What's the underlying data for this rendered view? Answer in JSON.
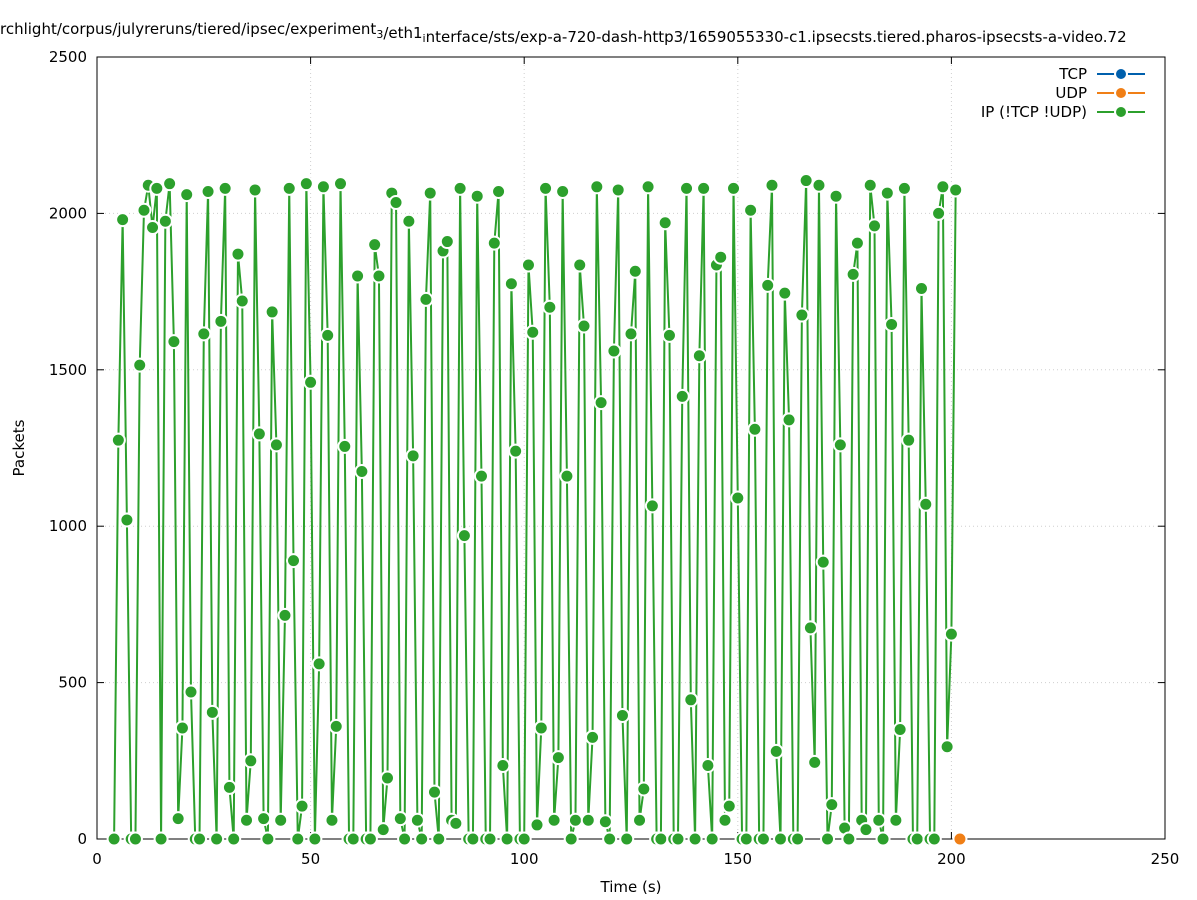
{
  "chart_data": {
    "type": "line",
    "title_text": "rchlight/corpus/julyreruns/tiered/ipsec/experiment",
    "title_sub1": "3",
    "title_mid": "/eth1",
    "title_sub2": "i",
    "title_rest": "nterface/sts/exp-a-720-dash-http3/1659055330-c1.ipsecsts.tiered.pharos-ipsecsts-a-video.72",
    "xlabel": "Time (s)",
    "ylabel": "Packets",
    "xlim": [
      0,
      250
    ],
    "ylim": [
      0,
      2500
    ],
    "xticks": [
      "0",
      "50",
      "100",
      "150",
      "200",
      "250"
    ],
    "yticks": [
      "0",
      "500",
      "1000",
      "1500",
      "2000",
      "2500"
    ],
    "grid": true,
    "legend_position": "top-right",
    "series": [
      {
        "name": "TCP",
        "color": "#0060ad",
        "x": [],
        "y": []
      },
      {
        "name": "UDP",
        "color": "#f07f16",
        "x": [
          202
        ],
        "y": [
          0
        ]
      },
      {
        "name": "IP (!TCP  !UDP)",
        "color": "#2ca02c",
        "x": [
          4,
          5,
          6,
          7,
          8,
          9,
          10,
          11,
          12,
          13,
          14,
          15,
          16,
          17,
          18,
          19,
          20,
          21,
          22,
          23,
          24,
          25,
          26,
          27,
          28,
          29,
          30,
          31,
          32,
          33,
          34,
          35,
          36,
          37,
          38,
          39,
          40,
          41,
          42,
          43,
          44,
          45,
          46,
          47,
          48,
          49,
          50,
          51,
          52,
          53,
          54,
          55,
          56,
          57,
          58,
          59,
          60,
          61,
          62,
          63,
          64,
          65,
          66,
          67,
          68,
          69,
          70,
          71,
          72,
          73,
          74,
          75,
          76,
          77,
          78,
          79,
          80,
          81,
          82,
          83,
          84,
          85,
          86,
          87,
          88,
          89,
          90,
          91,
          92,
          93,
          94,
          95,
          96,
          97,
          98,
          99,
          100,
          101,
          102,
          103,
          104,
          105,
          106,
          107,
          108,
          109,
          110,
          111,
          112,
          113,
          114,
          115,
          116,
          117,
          118,
          119,
          120,
          121,
          122,
          123,
          124,
          125,
          126,
          127,
          128,
          129,
          130,
          131,
          132,
          133,
          134,
          135,
          136,
          137,
          138,
          139,
          140,
          141,
          142,
          143,
          144,
          145,
          146,
          147,
          148,
          149,
          150,
          151,
          152,
          153,
          154,
          155,
          156,
          157,
          158,
          159,
          160,
          161,
          162,
          163,
          164,
          165,
          166,
          167,
          168,
          169,
          170,
          171,
          172,
          173,
          174,
          175,
          176,
          177,
          178,
          179,
          180,
          181,
          182,
          183,
          184,
          185,
          186,
          187,
          188,
          189,
          190,
          191,
          192,
          193,
          194,
          195,
          196,
          197,
          198,
          199,
          200,
          201
        ],
        "y": [
          0,
          1275,
          1980,
          1020,
          0,
          0,
          1515,
          2010,
          2090,
          1955,
          2080,
          0,
          1975,
          2095,
          1590,
          65,
          355,
          2060,
          470,
          0,
          0,
          1615,
          2070,
          405,
          0,
          1655,
          2080,
          165,
          0,
          1870,
          1720,
          60,
          250,
          2075,
          1295,
          65,
          0,
          1685,
          1260,
          60,
          715,
          2080,
          890,
          0,
          105,
          2095,
          1460,
          0,
          560,
          2085,
          1610,
          60,
          360,
          2095,
          1255,
          0,
          0,
          1800,
          1175,
          0,
          0,
          1900,
          1800,
          30,
          195,
          2065,
          2035,
          65,
          0,
          1975,
          1225,
          60,
          0,
          1725,
          2065,
          150,
          0,
          1880,
          1910,
          60,
          50,
          2080,
          970,
          0,
          0,
          2055,
          1160,
          0,
          0,
          1905,
          2070,
          235,
          0,
          1775,
          1240,
          0,
          0,
          1835,
          1620,
          45,
          355,
          2080,
          1700,
          60,
          260,
          2070,
          1160,
          0,
          60,
          1835,
          1640,
          60,
          325,
          2085,
          1395,
          55,
          0,
          1560,
          2075,
          395,
          0,
          1615,
          1815,
          60,
          160,
          2085,
          1065,
          0,
          0,
          1970,
          1610,
          0,
          0,
          1415,
          2080,
          445,
          0,
          1545,
          2080,
          235,
          0,
          1835,
          1860,
          60,
          105,
          2080,
          1090,
          0,
          0,
          2010,
          1310,
          0,
          0,
          1770,
          2090,
          280,
          0,
          1745,
          1340,
          0,
          0,
          1675,
          2105,
          675,
          245,
          2090,
          885,
          0,
          110,
          2055,
          1260,
          35,
          0,
          1805,
          1905,
          60,
          30,
          2090,
          1960,
          60,
          0,
          2065,
          1645,
          60,
          350,
          2080,
          1275,
          0,
          0,
          1760,
          1070,
          0,
          0,
          2000,
          2085,
          295,
          655,
          2075
        ]
      }
    ]
  }
}
